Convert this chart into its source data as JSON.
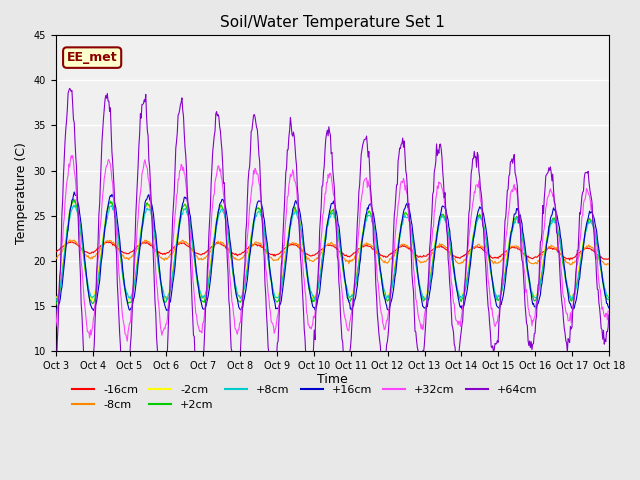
{
  "title": "Soil/Water Temperature Set 1",
  "xlabel": "Time",
  "ylabel": "Temperature (C)",
  "ylim": [
    10,
    45
  ],
  "yticks": [
    10,
    15,
    20,
    25,
    30,
    35,
    40,
    45
  ],
  "xtick_labels": [
    "Oct 3",
    "Oct 4",
    "Oct 5",
    "Oct 6",
    "Oct 7",
    "Oct 8",
    "Oct 9",
    "Oct 10",
    "Oct 11",
    "Oct 12",
    "Oct 13",
    "Oct 14",
    "Oct 15",
    "Oct 16",
    "Oct 17",
    "Oct 18"
  ],
  "series_colors": {
    "-16cm": "#ff0000",
    "-8cm": "#ff8800",
    "-2cm": "#ffff00",
    "+2cm": "#00cc00",
    "+8cm": "#00cccc",
    "+16cm": "#0000cc",
    "+32cm": "#ff44ff",
    "+64cm": "#8800cc"
  },
  "legend_label": "EE_met",
  "background_color": "#e8e8e8",
  "plot_bg_color": "#f0f0f0",
  "grid_color": "#ffffff",
  "n_days": 15,
  "base_temp": 21.0,
  "seed": 42
}
